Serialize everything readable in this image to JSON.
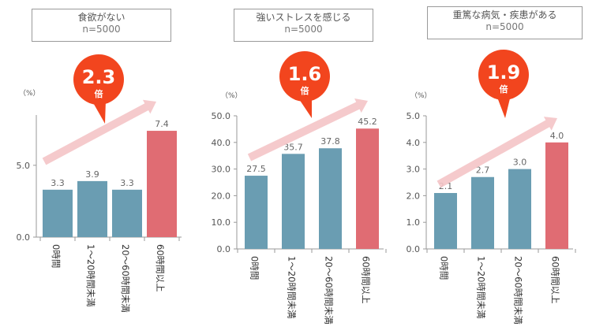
{
  "chart_data": [
    {
      "type": "bar",
      "title": "食欲がない",
      "subtitle": "n=5000",
      "unit": "（%）",
      "categories": [
        "0時間",
        "1～20時間未満",
        "20～60時間未満",
        "60時間以上"
      ],
      "values": [
        3.3,
        3.9,
        3.3,
        7.4
      ],
      "value_labels": [
        "3.3",
        "3.9",
        "3.3",
        "7.4"
      ],
      "ylim": [
        0,
        8.5
      ],
      "yticks": [
        0,
        5
      ],
      "ytick_labels": [
        "0.0",
        "5.0"
      ],
      "ratio": "2.3",
      "ratio_unit": "倍",
      "colors": {
        "normal": "#6a9db2",
        "highlight": "#e06c73"
      }
    },
    {
      "type": "bar",
      "title": "強いストレスを感じる",
      "subtitle": "n=5000",
      "unit": "（%）",
      "categories": [
        "0時間",
        "1～20時間未満",
        "20～60時間未満",
        "60時間以上"
      ],
      "values": [
        27.5,
        35.7,
        37.8,
        45.2
      ],
      "value_labels": [
        "27.5",
        "35.7",
        "37.8",
        "45.2"
      ],
      "ylim": [
        0,
        50
      ],
      "yticks": [
        0,
        10,
        20,
        30,
        40,
        50
      ],
      "ytick_labels": [
        "0.0",
        "10.0",
        "20.0",
        "30.0",
        "40.0",
        "50.0"
      ],
      "ratio": "1.6",
      "ratio_unit": "倍",
      "colors": {
        "normal": "#6a9db2",
        "highlight": "#e06c73"
      }
    },
    {
      "type": "bar",
      "title": "重篤な病気・疾患がある",
      "subtitle": "n=5000",
      "unit": "（%）",
      "categories": [
        "0時間",
        "1～20時間未満",
        "20～60時間未満",
        "60時間以上"
      ],
      "values": [
        2.1,
        2.7,
        3.0,
        4.0
      ],
      "value_labels": [
        "2.1",
        "2.7",
        "3.0",
        "4.0"
      ],
      "ylim": [
        0,
        5
      ],
      "yticks": [
        0,
        1,
        2,
        3,
        4,
        5
      ],
      "ytick_labels": [
        "0.0",
        "1.0",
        "2.0",
        "3.0",
        "4.0",
        "5.0"
      ],
      "ratio": "1.9",
      "ratio_unit": "倍",
      "colors": {
        "normal": "#6a9db2",
        "highlight": "#e06c73"
      }
    }
  ],
  "style": {
    "bubble_color": "#f2451e",
    "arrow_color": "#f4c4c6",
    "axis_color": "#999999"
  }
}
